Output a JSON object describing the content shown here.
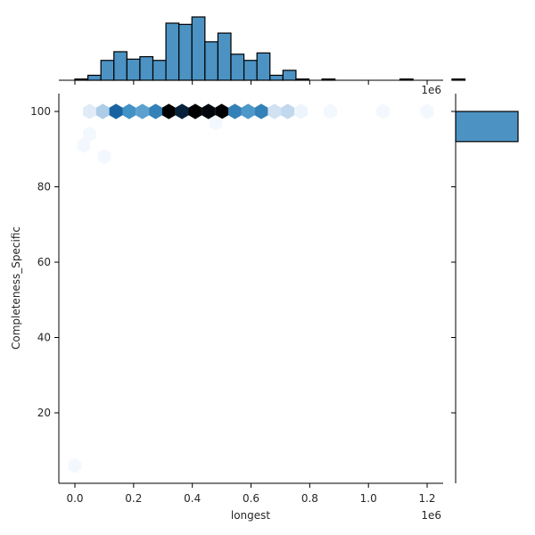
{
  "chart_data": {
    "type": "jointplot-hexbin",
    "title": "",
    "xlabel": "longest",
    "ylabel": "Completeness_Specific",
    "x_offset_label": "1e6",
    "top_offset_label": "1e6",
    "xlim": [
      -0.05,
      1.25
    ],
    "ylim": [
      2,
      105
    ],
    "x_ticks": [
      0.0,
      0.2,
      0.4,
      0.6,
      0.8,
      1.0,
      1.2
    ],
    "x_tick_labels": [
      "0.0",
      "0.2",
      "0.4",
      "0.6",
      "0.8",
      "1.0",
      "1.2"
    ],
    "y_ticks": [
      20,
      40,
      60,
      80,
      100
    ],
    "y_tick_labels": [
      "20",
      "40",
      "60",
      "80",
      "100"
    ],
    "grid": false,
    "color": "#4c92c3",
    "hexbins": [
      {
        "x": 0.05,
        "y": 100,
        "density": 0.12
      },
      {
        "x": 0.095,
        "y": 100,
        "density": 0.3
      },
      {
        "x": 0.14,
        "y": 100,
        "density": 0.72
      },
      {
        "x": 0.185,
        "y": 100,
        "density": 0.5
      },
      {
        "x": 0.23,
        "y": 100,
        "density": 0.45
      },
      {
        "x": 0.275,
        "y": 100,
        "density": 0.58
      },
      {
        "x": 0.32,
        "y": 100,
        "density": 1.0
      },
      {
        "x": 0.365,
        "y": 100,
        "density": 0.9
      },
      {
        "x": 0.41,
        "y": 100,
        "density": 1.0
      },
      {
        "x": 0.455,
        "y": 100,
        "density": 0.98
      },
      {
        "x": 0.5,
        "y": 100,
        "density": 1.0
      },
      {
        "x": 0.545,
        "y": 100,
        "density": 0.58
      },
      {
        "x": 0.59,
        "y": 100,
        "density": 0.48
      },
      {
        "x": 0.635,
        "y": 100,
        "density": 0.58
      },
      {
        "x": 0.68,
        "y": 100,
        "density": 0.2
      },
      {
        "x": 0.725,
        "y": 100,
        "density": 0.26
      },
      {
        "x": 0.77,
        "y": 100,
        "density": 0.05
      },
      {
        "x": 0.87,
        "y": 100,
        "density": 0.02
      },
      {
        "x": 1.05,
        "y": 100,
        "density": 0.02
      },
      {
        "x": 1.2,
        "y": 100,
        "density": 0.02
      },
      {
        "x": 0.05,
        "y": 94,
        "density": 0.02
      },
      {
        "x": 0.03,
        "y": 91,
        "density": 0.02
      },
      {
        "x": 0.1,
        "y": 88,
        "density": 0.02
      },
      {
        "x": 0.48,
        "y": 97,
        "density": 0.02
      },
      {
        "x": 0.0,
        "y": 6,
        "density": 0.02
      }
    ],
    "marginal_x": {
      "type": "bar",
      "bin_start": 0.0,
      "bin_width": 0.0443,
      "values": [
        1,
        4,
        16,
        23,
        17,
        19,
        16,
        46,
        45,
        51,
        31,
        38,
        21,
        16,
        22,
        4,
        8,
        1,
        0,
        1,
        0,
        0,
        0,
        0,
        0,
        1,
        0,
        0,
        0,
        1
      ]
    },
    "marginal_y": {
      "type": "bar",
      "bins": [
        {
          "from": 92,
          "to": 100,
          "value": 100
        }
      ]
    }
  }
}
